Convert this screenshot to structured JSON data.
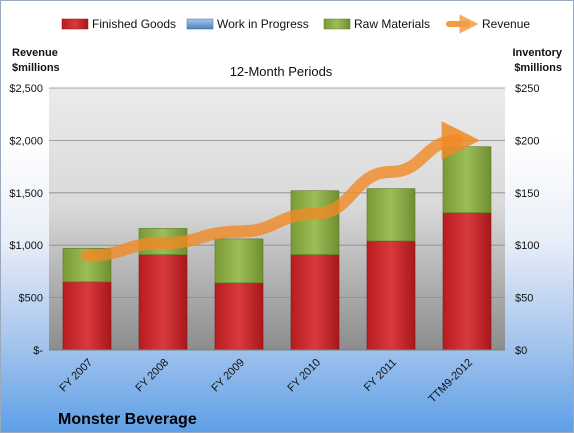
{
  "chart_data": {
    "type": "bar",
    "stacked": true,
    "title": "12-Month Periods",
    "categories": [
      "FY 2007",
      "FY 2008",
      "FY 2009",
      "FY 2010",
      "FY 2011",
      "TTM9-2012"
    ],
    "series": [
      {
        "name": "Finished Goods",
        "values": [
          65,
          91,
          64,
          91,
          104,
          131
        ],
        "color": "#c8282c",
        "axis": "right"
      },
      {
        "name": "Work in Progress",
        "values": [
          0,
          0,
          0,
          0,
          0,
          0
        ],
        "color": "#4f81bd",
        "axis": "right"
      },
      {
        "name": "Raw Materials",
        "values": [
          32,
          25,
          42,
          61,
          50,
          63
        ],
        "color": "#8fb048",
        "axis": "right"
      }
    ],
    "line": {
      "name": "Revenue",
      "values": [
        900,
        1020,
        1130,
        1300,
        1700,
        2000
      ],
      "color": "#f08a24",
      "axis": "left"
    },
    "left_axis": {
      "label_line1": "Revenue",
      "label_line2": "$millions",
      "min": 0,
      "max": 2500,
      "ticks": [
        "$-",
        "$500",
        "$1,000",
        "$1,500",
        "$2,000",
        "$2,500"
      ]
    },
    "right_axis": {
      "label_line1": "Inventory",
      "label_line2": "$millions",
      "min": 0,
      "max": 250,
      "ticks": [
        "$0",
        "$50",
        "$100",
        "$150",
        "$200",
        "$250"
      ]
    },
    "legend_position": "top",
    "grid": true
  },
  "company": "Monster Beverage"
}
